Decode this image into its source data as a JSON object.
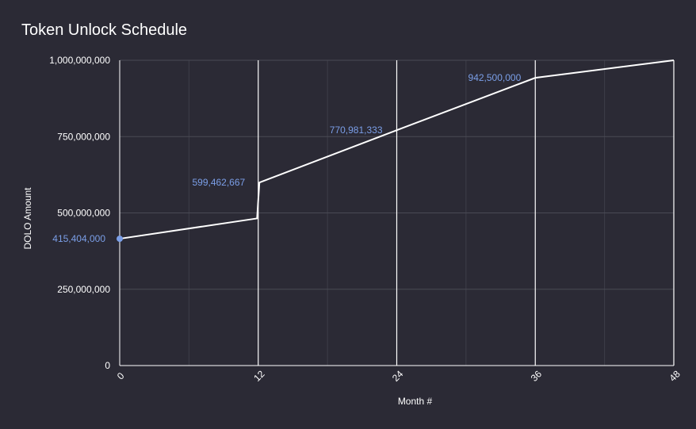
{
  "chart_data": {
    "type": "line",
    "title": "Token Unlock Schedule",
    "xlabel": "Month #",
    "ylabel": "DOLO Amount",
    "xlim": [
      0,
      48
    ],
    "ylim": [
      0,
      1000000000
    ],
    "x_ticks": [
      0,
      12,
      24,
      36,
      48
    ],
    "x_tick_labels": [
      "0",
      "12",
      "24",
      "36",
      "48"
    ],
    "y_ticks": [
      0,
      250000000,
      500000000,
      750000000,
      1000000000
    ],
    "y_tick_labels": [
      "0",
      "250,000,000",
      "500,000,000",
      "750,000,000",
      "1,000,000,000"
    ],
    "grid": true,
    "colors": {
      "background": "#2b2a35",
      "line": "#ffffff",
      "grid": "#4a4a55",
      "data_label": "#7b9fe8",
      "marker": "#7b9fe8"
    },
    "series": [
      {
        "x": [
          0,
          11.9,
          12.1,
          24,
          36,
          48
        ],
        "y": [
          415404000,
          482000000,
          599462667,
          770981333,
          942500000,
          1000000000
        ]
      }
    ],
    "data_labels": [
      {
        "x": 0,
        "y": 415404000,
        "text": "415,404,000",
        "marker": true
      },
      {
        "x": 12.1,
        "y": 599462667,
        "text": "599,462,667",
        "marker": false
      },
      {
        "x": 24,
        "y": 770981333,
        "text": "770,981,333",
        "marker": false
      },
      {
        "x": 36,
        "y": 942500000,
        "text": "942,500,000",
        "marker": false
      }
    ]
  }
}
